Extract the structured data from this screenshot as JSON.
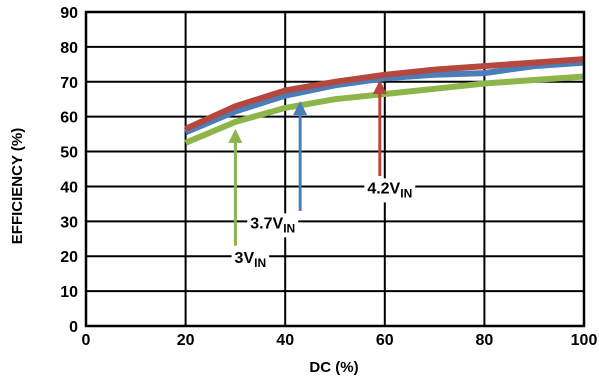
{
  "chart_data": {
    "type": "line",
    "title": "",
    "xlabel": "DC (%)",
    "ylabel": "EFFICIENCY (%)",
    "xlim": [
      0,
      100
    ],
    "ylim": [
      0,
      90
    ],
    "xticks": [
      0,
      20,
      40,
      60,
      80,
      100
    ],
    "yticks": [
      0,
      10,
      20,
      30,
      40,
      50,
      60,
      70,
      80,
      90
    ],
    "grid": true,
    "legend": "none",
    "series": [
      {
        "color": "#8db54a",
        "x": [
          20,
          30,
          40,
          50,
          60,
          70,
          80,
          90,
          100
        ],
        "y": [
          52.5,
          58.5,
          62.5,
          65,
          66.5,
          68,
          69.5,
          70.5,
          71.5
        ]
      },
      {
        "color": "#4a7ebb",
        "x": [
          20,
          30,
          40,
          50,
          60,
          70,
          80,
          90,
          100
        ],
        "y": [
          55.5,
          61.5,
          66,
          69,
          71,
          72,
          72.5,
          74.5,
          75.5
        ]
      },
      {
        "color": "#b5473f",
        "x": [
          20,
          30,
          40,
          50,
          60,
          70,
          80,
          90,
          100
        ],
        "y": [
          56.5,
          63,
          67.5,
          70,
          72,
          73.5,
          74.5,
          75.5,
          76.5
        ]
      }
    ],
    "annotations": [
      {
        "main": "3V",
        "sub": "IN",
        "color": "#8db54a",
        "arrow_x": 30,
        "arrow_from_y": 23,
        "arrow_to_y": 56.5,
        "label_x": 33,
        "label_y": 18
      },
      {
        "main": "3.7V",
        "sub": "IN",
        "color": "#4a7ebb",
        "arrow_x": 43,
        "arrow_from_y": 33,
        "arrow_to_y": 64.5,
        "label_x": 37.5,
        "label_y": 28
      },
      {
        "main": "4.2V",
        "sub": "IN",
        "color": "#b5473f",
        "arrow_x": 59,
        "arrow_from_y": 43,
        "arrow_to_y": 70.5,
        "label_x": 61,
        "label_y": 38
      }
    ]
  }
}
